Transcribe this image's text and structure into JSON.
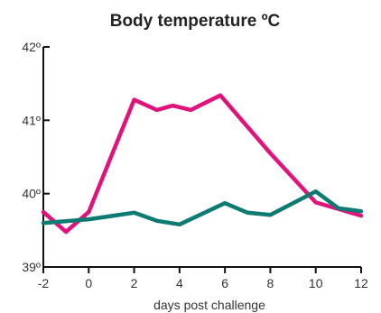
{
  "chart_data": {
    "type": "line",
    "title": "Body temperature ºC",
    "xlabel": "days post challenge",
    "ylabel": "",
    "xlim": [
      -2,
      12
    ],
    "ylim": [
      39,
      42
    ],
    "x_ticks": [
      -2,
      0,
      2,
      4,
      6,
      8,
      10,
      12
    ],
    "x_tick_labels": [
      "-2",
      "0",
      "2",
      "4",
      "6",
      "8",
      "10",
      "12"
    ],
    "y_ticks": [
      39,
      40,
      41,
      42
    ],
    "y_tick_labels": [
      "39º",
      "40º",
      "41º",
      "42º"
    ],
    "grid": false,
    "legend": "none",
    "series": [
      {
        "color": "#e0137d",
        "x": [
          -2,
          -1,
          0,
          2,
          3,
          3.7,
          4.5,
          5.8,
          8,
          10,
          12
        ],
        "y": [
          39.75,
          39.48,
          39.75,
          41.28,
          41.14,
          41.2,
          41.14,
          41.34,
          40.55,
          39.88,
          39.7
        ]
      },
      {
        "color": "#0e7b72",
        "x": [
          -2,
          0,
          2,
          3,
          4,
          6,
          7,
          8,
          10,
          11,
          12
        ],
        "y": [
          39.6,
          39.65,
          39.74,
          39.63,
          39.58,
          39.87,
          39.74,
          39.71,
          40.03,
          39.8,
          39.76
        ]
      }
    ]
  }
}
